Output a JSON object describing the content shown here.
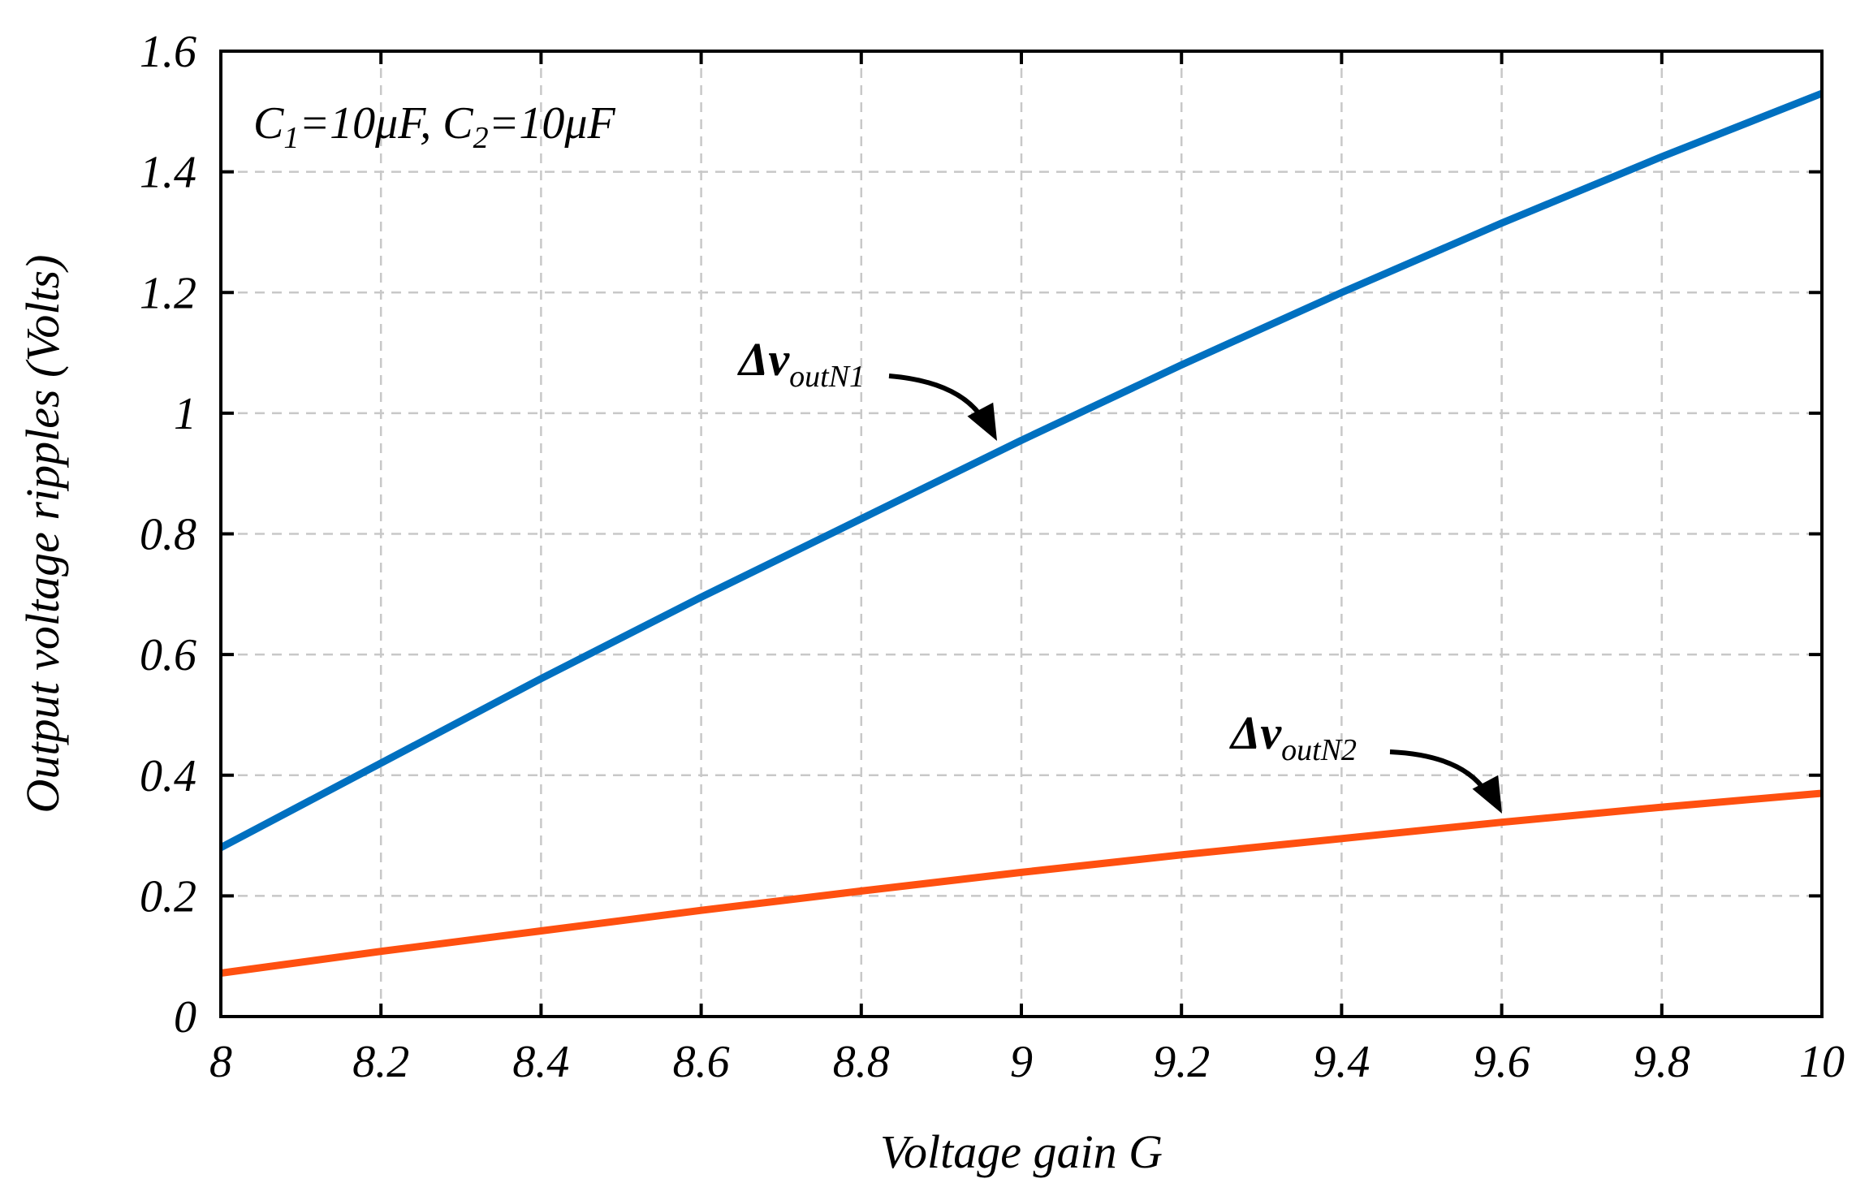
{
  "chart_data": {
    "type": "line",
    "title": "",
    "xlabel": "Voltage gain G",
    "ylabel": "Output voltage ripples (Volts)",
    "xlim": [
      8,
      10
    ],
    "ylim": [
      0,
      1.6
    ],
    "x_ticks": [
      8,
      8.2,
      8.4,
      8.6,
      8.8,
      9,
      9.2,
      9.4,
      9.6,
      9.8,
      10
    ],
    "x_tick_labels": [
      "8",
      "8.2",
      "8.4",
      "8.6",
      "8.8",
      "9",
      "9.2",
      "9.4",
      "9.6",
      "9.8",
      "10"
    ],
    "y_ticks": [
      0,
      0.2,
      0.4,
      0.6,
      0.8,
      1.0,
      1.2,
      1.4,
      1.6
    ],
    "y_tick_labels": [
      "0",
      "0.2",
      "0.4",
      "0.6",
      "0.8",
      "1",
      "1.2",
      "1.4",
      "1.6"
    ],
    "grid": true,
    "annotation": {
      "c1_prefix": "C",
      "c1_sub": "1",
      "c1_value": "=10μF, ",
      "c2_prefix": "C",
      "c2_sub": "2",
      "c2_value": "=10μF"
    },
    "series": [
      {
        "name": "Δv_outN1",
        "label_main": "Δv",
        "label_sub": "outN1",
        "color": "#0070C0",
        "x": [
          8,
          8.2,
          8.4,
          8.6,
          8.8,
          9,
          9.2,
          9.4,
          9.6,
          9.8,
          10
        ],
        "y": [
          0.28,
          0.42,
          0.56,
          0.695,
          0.825,
          0.955,
          1.08,
          1.2,
          1.315,
          1.425,
          1.53
        ]
      },
      {
        "name": "Δv_outN2",
        "label_main": "Δv",
        "label_sub": "outN2",
        "color": "#FF5010",
        "x": [
          8,
          8.2,
          8.4,
          8.6,
          8.8,
          9,
          9.2,
          9.4,
          9.6,
          9.8,
          10
        ],
        "y": [
          0.072,
          0.108,
          0.142,
          0.176,
          0.208,
          0.239,
          0.268,
          0.295,
          0.322,
          0.347,
          0.37
        ]
      }
    ]
  }
}
